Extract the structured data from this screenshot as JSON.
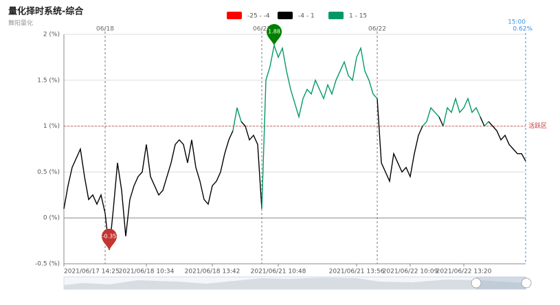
{
  "chart_data": {
    "type": "line",
    "title": "量化择时系统-综合",
    "subtitle": "舞阳量化",
    "pieces": [
      {
        "label": "-25 - -4",
        "min": -25,
        "max": -4,
        "color": "#ff0000"
      },
      {
        "label": "-4 - 1",
        "min": -4,
        "max": 1,
        "color": "#000000"
      },
      {
        "label": "1 - 15",
        "min": 1,
        "max": 15,
        "color": "#009966"
      }
    ],
    "categories": [
      "2021/06/17 14:25",
      null,
      null,
      null,
      null,
      null,
      null,
      null,
      null,
      null,
      null,
      null,
      null,
      null,
      null,
      null,
      null,
      null,
      null,
      null,
      "2021/06/18 10:34",
      null,
      null,
      null,
      null,
      null,
      null,
      null,
      null,
      null,
      null,
      null,
      null,
      null,
      null,
      null,
      "2021/06/18 13:42",
      null,
      null,
      null,
      null,
      null,
      null,
      null,
      null,
      null,
      null,
      null,
      null,
      null,
      null,
      null,
      "2021/06/21 10:48",
      null,
      null,
      null,
      null,
      null,
      null,
      null,
      null,
      null,
      null,
      null,
      null,
      null,
      null,
      null,
      null,
      null,
      null,
      "2021/06/21 13:56",
      null,
      null,
      null,
      null,
      null,
      null,
      null,
      null,
      null,
      null,
      null,
      null,
      "2021/06/22 10:09",
      null,
      null,
      null,
      null,
      null,
      null,
      null,
      null,
      null,
      null,
      null,
      null,
      "2021/06/22 13:20",
      null,
      null,
      null,
      null,
      null,
      null,
      null,
      null,
      null,
      null,
      null,
      null,
      null,
      null,
      null
    ],
    "values": [
      0.1,
      0.35,
      0.55,
      0.65,
      0.75,
      0.45,
      0.2,
      0.25,
      0.15,
      0.25,
      0.05,
      -0.35,
      0.1,
      0.6,
      0.3,
      -0.2,
      0.2,
      0.35,
      0.45,
      0.5,
      0.8,
      0.45,
      0.35,
      0.25,
      0.3,
      0.45,
      0.6,
      0.8,
      0.85,
      0.8,
      0.6,
      0.85,
      0.55,
      0.4,
      0.2,
      0.15,
      0.35,
      0.4,
      0.5,
      0.7,
      0.85,
      0.95,
      1.2,
      1.05,
      1.0,
      0.85,
      0.9,
      0.8,
      0.1,
      1.5,
      1.65,
      1.88,
      1.75,
      1.85,
      1.6,
      1.4,
      1.25,
      1.1,
      1.3,
      1.4,
      1.35,
      1.5,
      1.4,
      1.3,
      1.45,
      1.35,
      1.5,
      1.6,
      1.7,
      1.55,
      1.5,
      1.75,
      1.85,
      1.6,
      1.5,
      1.35,
      1.3,
      0.6,
      0.5,
      0.4,
      0.7,
      0.6,
      0.5,
      0.55,
      0.45,
      0.7,
      0.9,
      1.0,
      1.05,
      1.2,
      1.15,
      1.1,
      1.0,
      1.2,
      1.15,
      1.3,
      1.15,
      1.2,
      1.3,
      1.15,
      1.2,
      1.1,
      1.0,
      1.05,
      1.0,
      0.95,
      0.85,
      0.9,
      0.8,
      0.75,
      0.7,
      0.7,
      0.62
    ],
    "day_markers": [
      {
        "index": 10,
        "label": "06/18"
      },
      {
        "index": 48,
        "label": "06/21"
      },
      {
        "index": 76,
        "label": "06/22"
      }
    ],
    "end_marker": {
      "index": 112,
      "time": "15:00",
      "value_label": "0.62%"
    },
    "markers": [
      {
        "index": 51,
        "label": "1.88",
        "color": "#008000"
      },
      {
        "index": 11,
        "label": "-0.35",
        "color": "#c23531"
      }
    ],
    "mark_line": {
      "value": 1,
      "label": "活跃区"
    },
    "ylim": [
      -0.5,
      2
    ],
    "yticks": [
      {
        "value": -0.5,
        "label": "-0.5 (%)"
      },
      {
        "value": 0,
        "label": "0 (%)"
      },
      {
        "value": 0.5,
        "label": "0.5 (%)"
      },
      {
        "value": 1,
        "label": "1 (%)"
      },
      {
        "value": 1.5,
        "label": "1.5 (%)"
      },
      {
        "value": 2,
        "label": "2 (%)"
      }
    ],
    "grid": true
  }
}
